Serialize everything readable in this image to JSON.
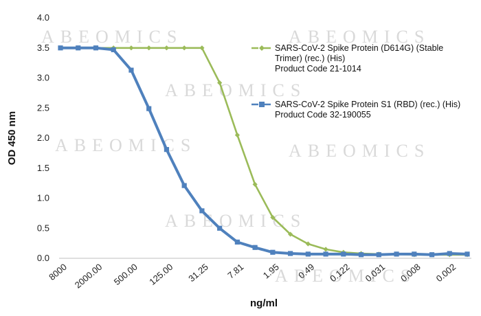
{
  "chart_data": {
    "type": "line",
    "xlabel": "ng/ml",
    "ylabel": "OD 450 nm",
    "ylim": [
      0,
      4.0
    ],
    "yticks": [
      "0.0",
      "0.5",
      "1.0",
      "1.5",
      "2.0",
      "2.5",
      "3.0",
      "3.5",
      "4.0"
    ],
    "xtick_labels": [
      "8000",
      "2000.00",
      "500.00",
      "125.00",
      "31.25",
      "7.81",
      "1.95",
      "0.49",
      "0.122",
      "0.031",
      "0.008",
      "0.002"
    ],
    "grid": false,
    "legend_position": "top-right",
    "watermark": "ABEOMICS",
    "series": [
      {
        "name": "SARS-CoV-2 Spike Protein (D614G) (Stable Trimer) (rec.) (His)",
        "note": "Product Code 21-1014",
        "color": "#9bbb59",
        "marker": "diamond",
        "values": [
          3.5,
          3.5,
          3.5,
          3.5,
          3.5,
          3.5,
          3.5,
          3.5,
          3.5,
          2.92,
          2.05,
          1.23,
          0.68,
          0.4,
          0.24,
          0.15,
          0.1,
          0.08,
          0.07,
          0.07,
          0.06,
          0.06,
          0.06,
          0.06
        ]
      },
      {
        "name": "SARS-CoV-2 Spike Protein S1 (RBD) (rec.) (His)",
        "note": "Product Code 32-190055",
        "color": "#4f81bd",
        "marker": "square",
        "values": [
          3.5,
          3.5,
          3.5,
          3.47,
          3.13,
          2.49,
          1.81,
          1.21,
          0.79,
          0.5,
          0.27,
          0.18,
          0.1,
          0.08,
          0.07,
          0.07,
          0.07,
          0.06,
          0.06,
          0.07,
          0.07,
          0.06,
          0.08,
          0.07
        ]
      }
    ]
  }
}
